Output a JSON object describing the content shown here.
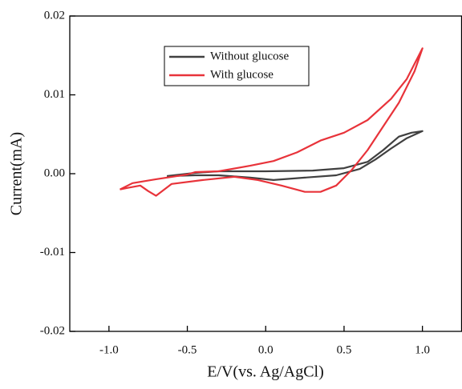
{
  "chart_data": {
    "type": "line",
    "xlabel": "E/V(vs. Ag/AgCl)",
    "ylabel": "Current(mA)",
    "xlim": [
      -1.25,
      1.25
    ],
    "ylim": [
      -0.02,
      0.02
    ],
    "xticks": [
      {
        "value": -1,
        "label": "-1.0"
      },
      -0.5,
      {
        "value": 0,
        "label": "0.0"
      },
      0.5,
      {
        "value": 1,
        "label": "1.0"
      }
    ],
    "yticks": [
      -0.02,
      -0.01,
      {
        "value": 0,
        "label": "0.00"
      },
      0.01,
      0.02
    ],
    "legend": "upper center",
    "series": [
      {
        "name": "Without glucose",
        "color": "#404040",
        "x": [
          -0.63,
          -0.45,
          -0.3,
          0,
          0.3,
          0.5,
          0.65,
          0.75,
          0.85,
          0.93,
          1.0,
          0.9,
          0.8,
          0.7,
          0.6,
          0.45,
          0.25,
          0.05,
          -0.1,
          -0.3,
          -0.45,
          -0.63
        ],
        "values": [
          -0.0003,
          0.0001,
          0.0003,
          0.0003,
          0.0004,
          0.0007,
          0.0015,
          0.003,
          0.0047,
          0.0052,
          0.0054,
          0.0045,
          0.0032,
          0.0018,
          0.0006,
          -0.0002,
          -0.0005,
          -0.0008,
          -0.0005,
          -0.0002,
          -0.0002,
          -0.0003
        ]
      },
      {
        "name": "With glucose",
        "color": "#e8333a",
        "x": [
          -0.93,
          -0.85,
          -0.7,
          -0.5,
          -0.45,
          -0.3,
          -0.1,
          0.05,
          0.2,
          0.35,
          0.5,
          0.65,
          0.8,
          0.9,
          1.0,
          0.95,
          0.85,
          0.75,
          0.65,
          0.55,
          0.45,
          0.35,
          0.25,
          0.1,
          -0.05,
          -0.2,
          -0.4,
          -0.6,
          -0.7,
          -0.75,
          -0.8,
          -0.88,
          -0.93
        ],
        "values": [
          -0.002,
          -0.0012,
          -0.0007,
          -0.0001,
          0.0002,
          0.0003,
          0.001,
          0.0016,
          0.0027,
          0.0042,
          0.0052,
          0.0068,
          0.0095,
          0.012,
          0.0159,
          0.013,
          0.009,
          0.006,
          0.003,
          0.0005,
          -0.0015,
          -0.0023,
          -0.0023,
          -0.0015,
          -0.0008,
          -0.0004,
          -0.0008,
          -0.0013,
          -0.0028,
          -0.0022,
          -0.0015,
          -0.0018,
          -0.002
        ]
      }
    ]
  }
}
